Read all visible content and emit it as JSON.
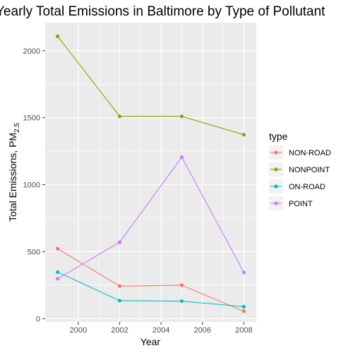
{
  "chart_data": {
    "type": "line",
    "title": "Yearly Total Emissions in Baltimore by Type of Pollutant",
    "xlabel": "Year",
    "ylabel": "Total Emissions, PM",
    "ylabel_subscript": "2.5",
    "x": [
      1999,
      2002,
      2005,
      2008
    ],
    "x_ticks": [
      2000,
      2002,
      2004,
      2006,
      2008
    ],
    "y_ticks": [
      0,
      500,
      1000,
      1500,
      2000
    ],
    "xlim": [
      1998.4,
      2008.6
    ],
    "ylim": [
      -25,
      2210
    ],
    "grid": true,
    "legend_position": "right",
    "legend_title": "type",
    "series": [
      {
        "name": "NON-ROAD",
        "color": "#F8766D",
        "values": [
          522,
          242,
          249,
          55
        ]
      },
      {
        "name": "NONPOINT",
        "color": "#7CAE00",
        "values": [
          2108,
          1510,
          1510,
          1373
        ]
      },
      {
        "name": "ON-ROAD",
        "color": "#00BFC4",
        "values": [
          347,
          134,
          130,
          89
        ]
      },
      {
        "name": "POINT",
        "color": "#C77CFF",
        "values": [
          297,
          570,
          1205,
          345
        ]
      }
    ]
  }
}
